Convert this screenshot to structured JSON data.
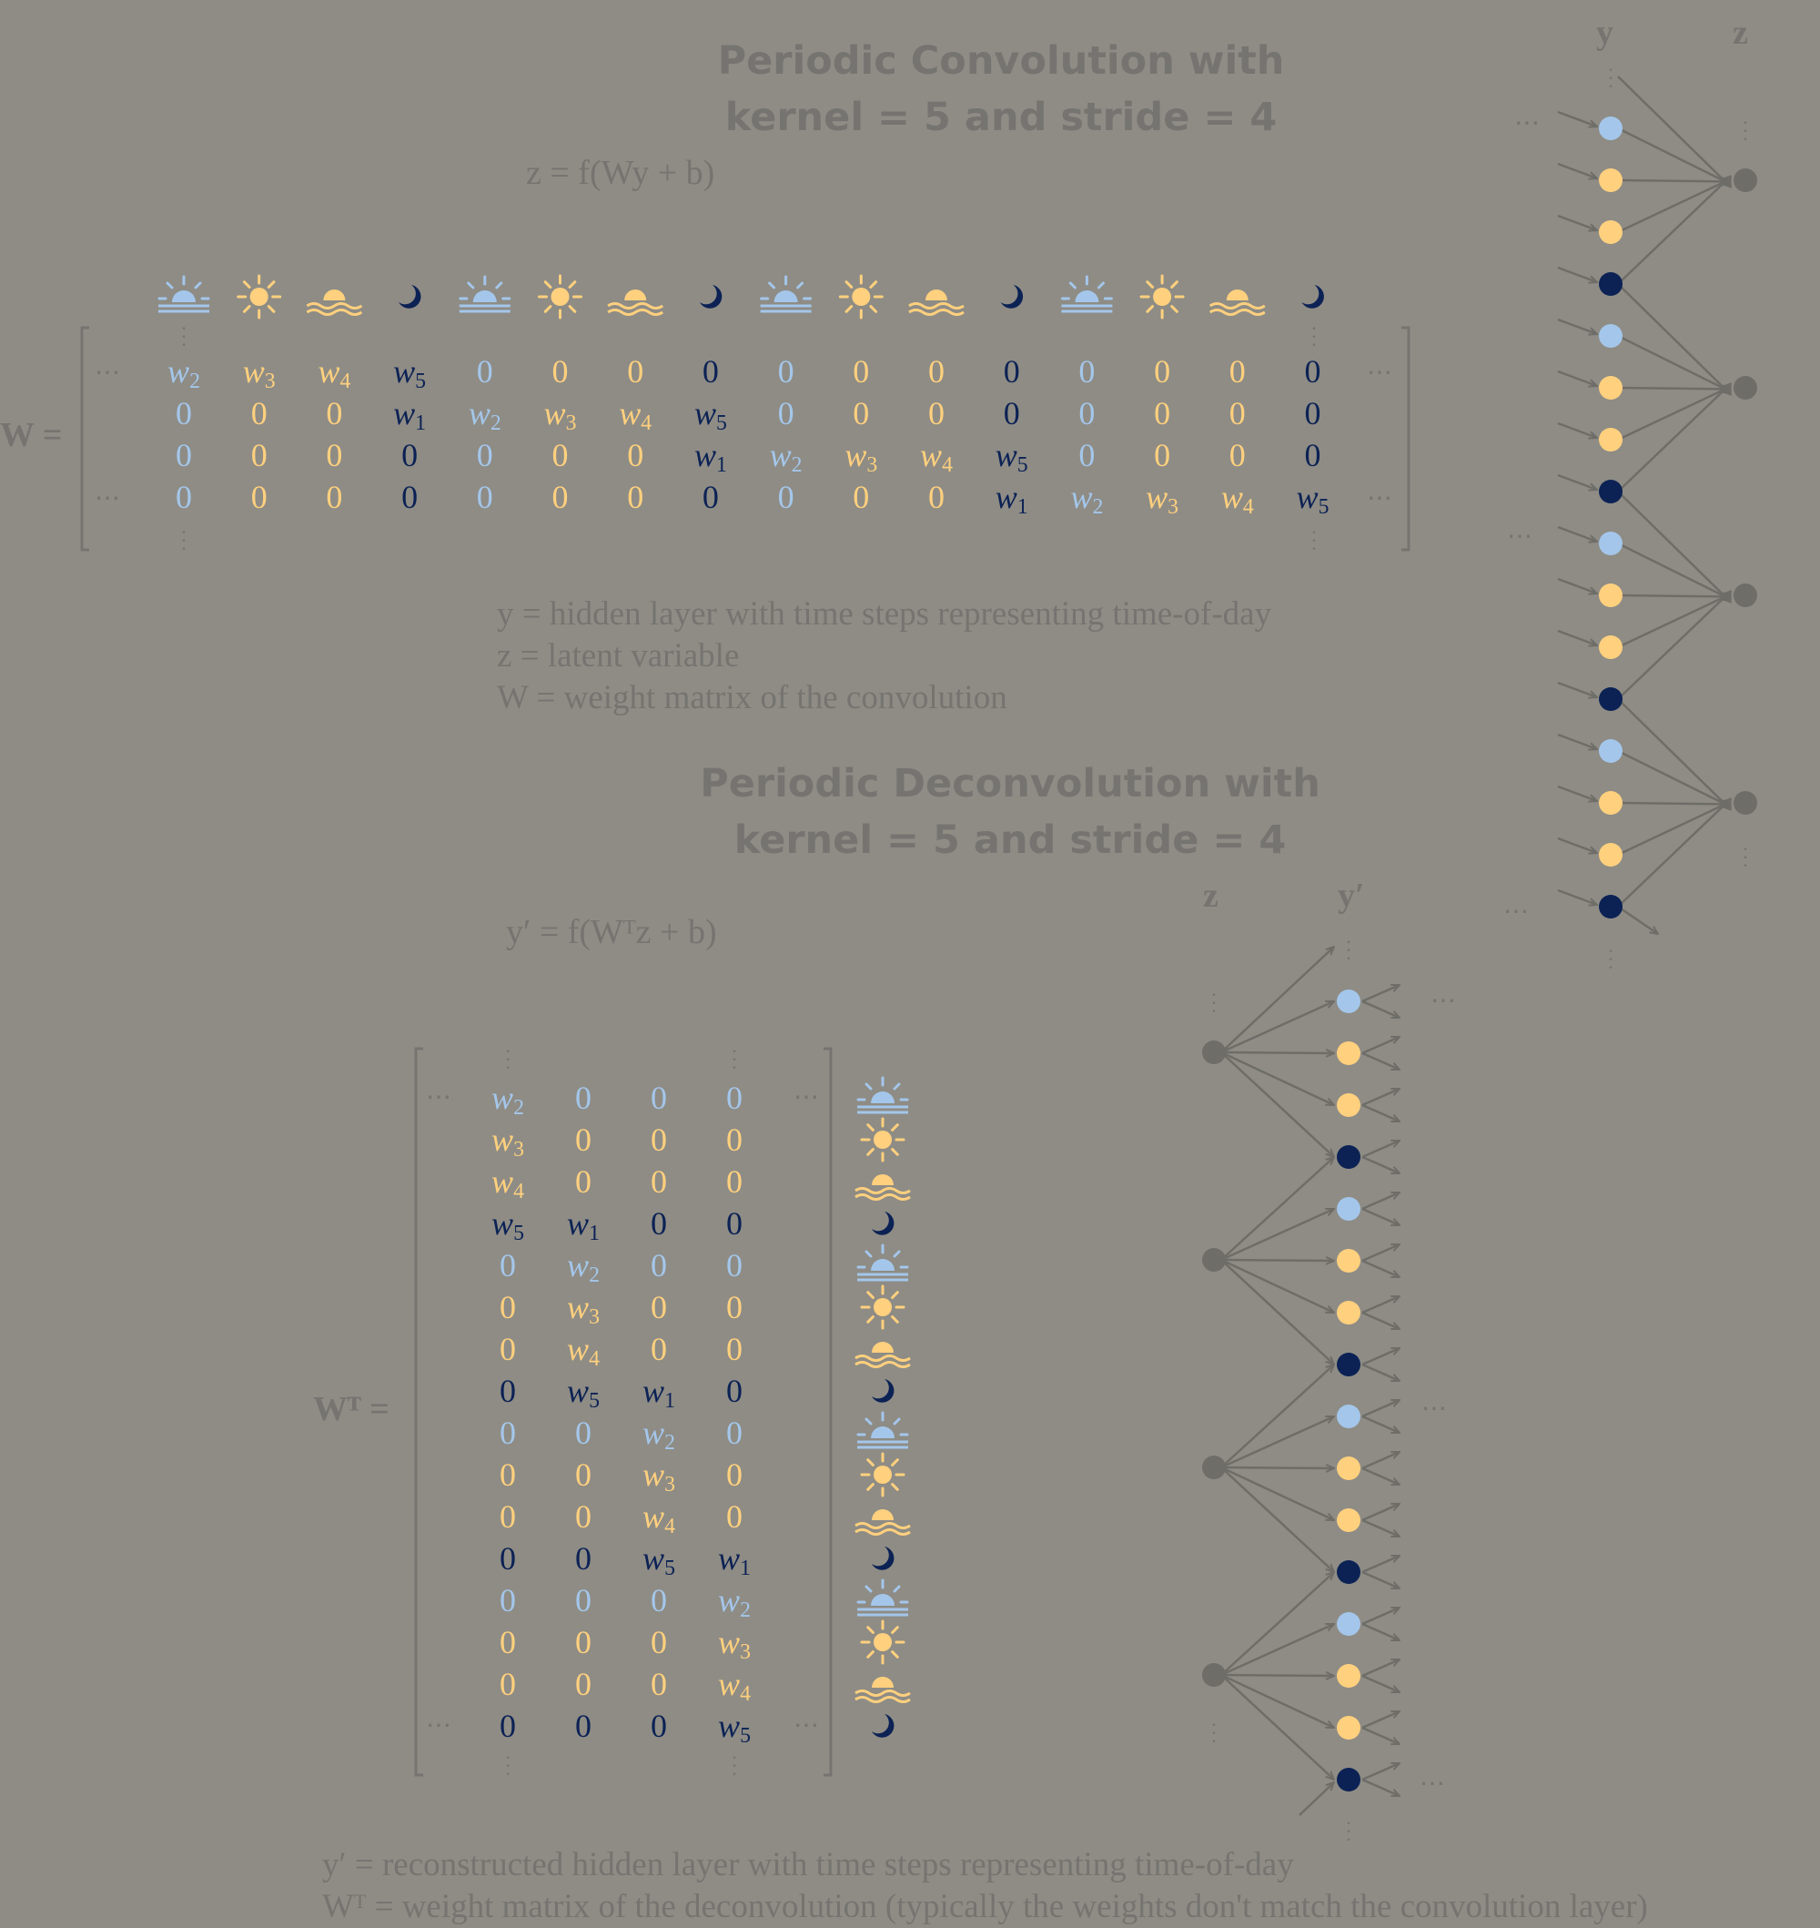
{
  "conv": {
    "title_line1": "Periodic Convolution with",
    "title_line2": "kernel = 5 and stride = 4",
    "formula": "z = f(Wy + b)",
    "matrix_label": "W =",
    "legend": [
      "y = hidden layer with time steps representing time-of-day",
      "z = latent variable",
      "W = weight matrix of the convolution"
    ],
    "layer_labels": {
      "y": "y",
      "z": "z"
    }
  },
  "deconv": {
    "title_line1": "Periodic Deconvolution with",
    "title_line2": "kernel = 5 and stride = 4",
    "formula": "y′ = f(Wᵀz + b)",
    "matrix_label": "Wᵀ =",
    "legend": [
      "y′ = reconstructed hidden layer with time steps representing time-of-day",
      "Wᵀ = weight matrix of the deconvolution (typically the weights don't match the convolution layer)"
    ],
    "layer_labels": {
      "z": "z",
      "y": "y′"
    }
  },
  "time_of_day_cycle": [
    "sunrise-icon",
    "sun-icon",
    "sunset-icon",
    "moon-icon"
  ],
  "colors": {
    "background": "#8e8c85",
    "text": "#767470",
    "sunrise": "#a4c6ea",
    "day": "#ffd07e",
    "night": "#0c2255",
    "latent": "#6e6d68"
  },
  "W_rows": [
    [
      "w2",
      "w3",
      "w4",
      "w5",
      "0",
      "0",
      "0",
      "0",
      "0",
      "0",
      "0",
      "0",
      "0",
      "0",
      "0",
      "0"
    ],
    [
      "0",
      "0",
      "0",
      "w1",
      "w2",
      "w3",
      "w4",
      "w5",
      "0",
      "0",
      "0",
      "0",
      "0",
      "0",
      "0",
      "0"
    ],
    [
      "0",
      "0",
      "0",
      "0",
      "0",
      "0",
      "0",
      "w1",
      "w2",
      "w3",
      "w4",
      "w5",
      "0",
      "0",
      "0",
      "0"
    ],
    [
      "0",
      "0",
      "0",
      "0",
      "0",
      "0",
      "0",
      "0",
      "0",
      "0",
      "0",
      "w1",
      "w2",
      "w3",
      "w4",
      "w5"
    ]
  ],
  "WT_rows": [
    [
      "w2",
      "0",
      "0",
      "0"
    ],
    [
      "w3",
      "0",
      "0",
      "0"
    ],
    [
      "w4",
      "0",
      "0",
      "0"
    ],
    [
      "w5",
      "w1",
      "0",
      "0"
    ],
    [
      "0",
      "w2",
      "0",
      "0"
    ],
    [
      "0",
      "w3",
      "0",
      "0"
    ],
    [
      "0",
      "w4",
      "0",
      "0"
    ],
    [
      "0",
      "w5",
      "w1",
      "0"
    ],
    [
      "0",
      "0",
      "w2",
      "0"
    ],
    [
      "0",
      "0",
      "w3",
      "0"
    ],
    [
      "0",
      "0",
      "w4",
      "0"
    ],
    [
      "0",
      "0",
      "w5",
      "w1"
    ],
    [
      "0",
      "0",
      "0",
      "w2"
    ],
    [
      "0",
      "0",
      "0",
      "w3"
    ],
    [
      "0",
      "0",
      "0",
      "w4"
    ],
    [
      "0",
      "0",
      "0",
      "w5"
    ]
  ],
  "ellipsis": "⋯"
}
